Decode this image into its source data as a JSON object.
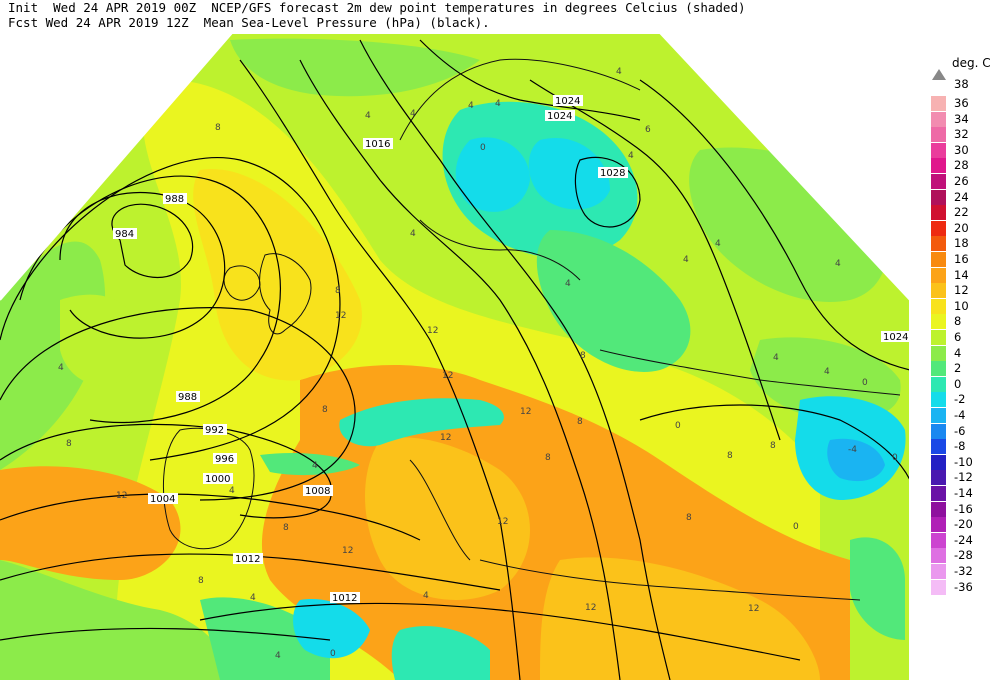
{
  "header": {
    "line1": "Init  Wed 24 APR 2019 00Z  NCEP/GFS forecast 2m dew point temperatures in degrees Celcius (shaded)",
    "line2": "Fcst Wed 24 APR 2019 12Z  Mean Sea-Level Pressure (hPa) (black)."
  },
  "legend": {
    "unit": "deg. C",
    "top_label": "38",
    "entries": [
      {
        "label": "36",
        "color": "#f7b2b2"
      },
      {
        "label": "34",
        "color": "#f28cb0"
      },
      {
        "label": "32",
        "color": "#ee6aa6"
      },
      {
        "label": "30",
        "color": "#ea3d9c"
      },
      {
        "label": "28",
        "color": "#e0178c"
      },
      {
        "label": "26",
        "color": "#c0107a"
      },
      {
        "label": "24",
        "color": "#b0105a"
      },
      {
        "label": "22",
        "color": "#d01030"
      },
      {
        "label": "20",
        "color": "#ee2a10"
      },
      {
        "label": "18",
        "color": "#f35a0c"
      },
      {
        "label": "16",
        "color": "#f88a10"
      },
      {
        "label": "14",
        "color": "#fca318"
      },
      {
        "label": "12",
        "color": "#fbc21a"
      },
      {
        "label": "10",
        "color": "#f8e21c"
      },
      {
        "label": "8",
        "color": "#eaf520"
      },
      {
        "label": "6",
        "color": "#bdf22e"
      },
      {
        "label": "4",
        "color": "#8ceb4a"
      },
      {
        "label": "2",
        "color": "#52e87a"
      },
      {
        "label": "0",
        "color": "#2de8b2"
      },
      {
        "label": "-2",
        "color": "#14dcea"
      },
      {
        "label": "-4",
        "color": "#1ab4f2"
      },
      {
        "label": "-6",
        "color": "#1a88f0"
      },
      {
        "label": "-8",
        "color": "#1a48e6"
      },
      {
        "label": "-10",
        "color": "#2220c4"
      },
      {
        "label": "-12",
        "color": "#4a18b0"
      },
      {
        "label": "-14",
        "color": "#6a12a6"
      },
      {
        "label": "-16",
        "color": "#8e109e"
      },
      {
        "label": "-20",
        "color": "#b020b6"
      },
      {
        "label": "-24",
        "color": "#cc44d0"
      },
      {
        "label": "-28",
        "color": "#de70e2"
      },
      {
        "label": "-32",
        "color": "#ea98ee"
      },
      {
        "label": "-36",
        "color": "#f4bcf6"
      }
    ]
  },
  "isobar_labels": [
    "984",
    "988",
    "988",
    "992",
    "996",
    "1000",
    "1004",
    "1008",
    "1012",
    "1012",
    "1016",
    "1024",
    "1024",
    "1028",
    "1024"
  ],
  "dewpoint_labels": [
    "8",
    "4",
    "4",
    "4",
    "4",
    "4",
    "4",
    "6",
    "4",
    "0",
    "4",
    "4",
    "4",
    "4",
    "4",
    "8",
    "8",
    "8",
    "12",
    "12",
    "4",
    "4",
    "4",
    "4",
    "12",
    "12",
    "12",
    "8",
    "8",
    "8",
    "8",
    "8",
    "12",
    "8",
    "8",
    "12",
    "12",
    "12",
    "0",
    "4",
    "0",
    "-4",
    "0",
    "4",
    "0",
    "4",
    "0",
    "8",
    "12"
  ]
}
